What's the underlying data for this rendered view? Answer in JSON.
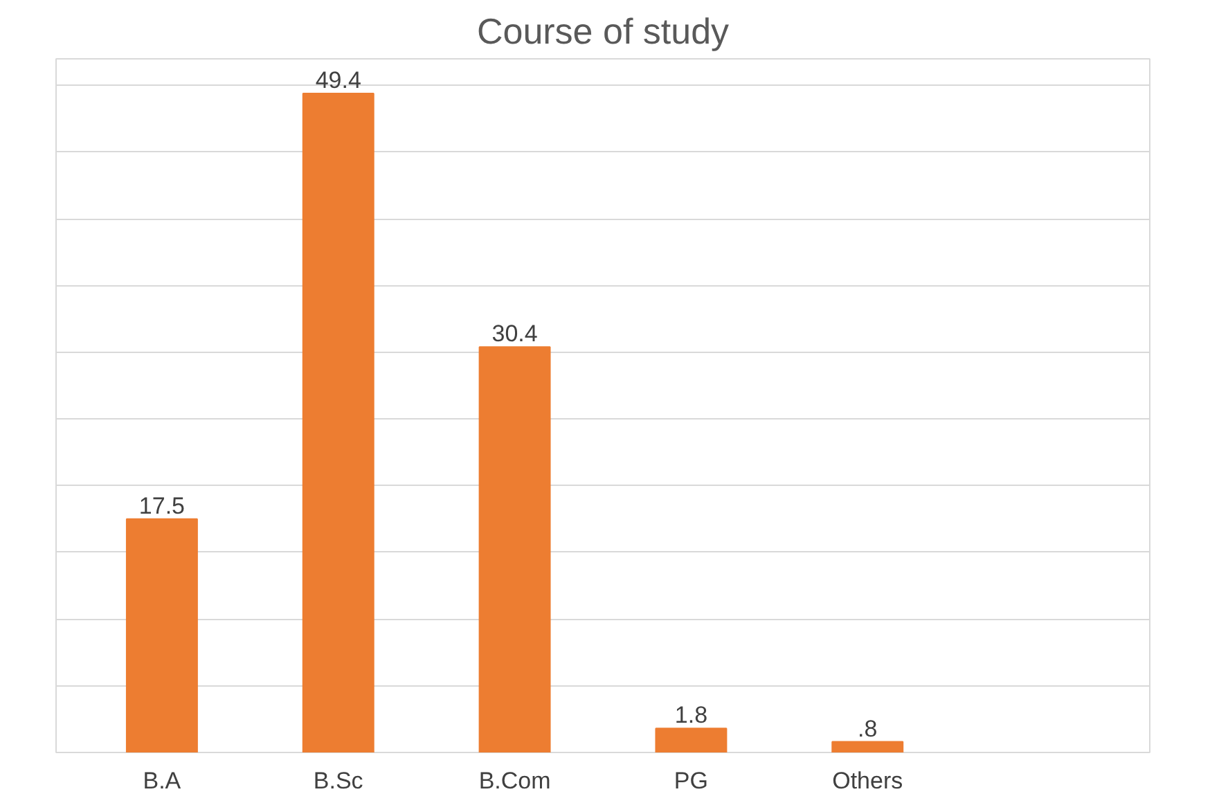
{
  "chart_data": {
    "type": "bar",
    "title": "Course of study",
    "categories": [
      "B.A",
      "B.Sc",
      "B.Com",
      "PG",
      "Others"
    ],
    "values": [
      17.5,
      49.4,
      30.4,
      1.8,
      0.8
    ],
    "value_labels": [
      "17.5",
      "49.4",
      "30.4",
      "1.8",
      ".8"
    ],
    "color": "#ed7d31",
    "ylim": [
      0,
      52
    ],
    "yticks": [
      {
        "value": 0,
        "label": null
      },
      {
        "value": 5,
        "label": null
      },
      {
        "value": 10,
        "label": null
      },
      {
        "value": 15,
        "label": null
      },
      {
        "value": 20,
        "label": null
      },
      {
        "value": 25,
        "label": null
      },
      {
        "value": 30,
        "label": null
      },
      {
        "value": 35,
        "label": null
      },
      {
        "value": 40,
        "label": null
      },
      {
        "value": 45,
        "label": null
      },
      {
        "value": 50,
        "label": null
      }
    ],
    "grid": "y",
    "tick_labels": "x"
  }
}
